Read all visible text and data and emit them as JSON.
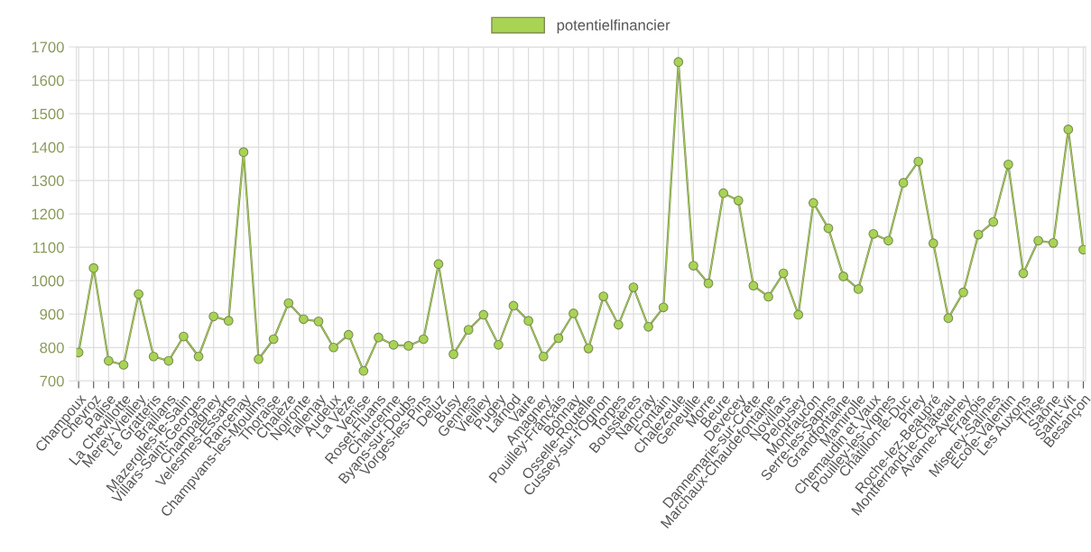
{
  "chart_data": {
    "type": "line",
    "categories": [
      "Champoux",
      "Chevroz",
      "Palise",
      "La Chevillotte",
      "Merey-Vieilley",
      "Le Gratteris",
      "Braillans",
      "Mazerolles-le-Salin",
      "Villars-Saint-Georges",
      "Champagney",
      "Velesmes-Essarts",
      "Rancenay",
      "Champvans-les-Moulins",
      "Thoraise",
      "Chalèze",
      "Noironte",
      "Tallenay",
      "Audeux",
      "La Vèze",
      "Venise",
      "Roset-Fluans",
      "Chaucenne",
      "Byans-sur-Doubs",
      "Vorges-les-Pins",
      "Deluz",
      "Busy",
      "Gennes",
      "Vieilley",
      "Pugey",
      "Larnod",
      "Vaire",
      "Amagney",
      "Pouilley-Français",
      "Bonnay",
      "Osselle-Routelle",
      "Cussey-sur-l'Ognon",
      "Torpes",
      "Boussières",
      "Nancray",
      "Fontain",
      "Chalezeule",
      "Geneuille",
      "Morre",
      "Beure",
      "Devecey",
      "Dannemarie-sur-Crète",
      "Marchaux-Chaudefontaine",
      "Novillars",
      "Pelousey",
      "Montfaucon",
      "Serre-les-Sapins",
      "Grandfontaine",
      "Mamirolle",
      "Chemaudin et Vaux",
      "Pouilley-les-Vignes",
      "Châtillon-le-Duc",
      "Pirey",
      "Roche-lez-Beaupré",
      "Montferrand-le-Château",
      "Avanne-Aveney",
      "Franois",
      "Miserey-Salines",
      "École-Valentin",
      "Les Auxons",
      "Thise",
      "Saône",
      "Saint-Vit",
      "Besançon"
    ],
    "series": [
      {
        "name": "potentielfinancier",
        "color": "#a8d454",
        "values": [
          785,
          1038,
          760,
          748,
          960,
          773,
          760,
          833,
          773,
          893,
          880,
          1385,
          765,
          825,
          933,
          885,
          878,
          800,
          838,
          730,
          830,
          808,
          805,
          825,
          1050,
          780,
          853,
          898,
          808,
          925,
          880,
          773,
          828,
          902,
          797,
          953,
          868,
          980,
          862,
          920,
          1655,
          1045,
          992,
          1262,
          1240,
          985,
          952,
          1022,
          898,
          1233,
          1157,
          1013,
          975,
          1140,
          1120,
          1293,
          1357,
          1112,
          888,
          965,
          1138,
          1176,
          1348,
          1022,
          1120,
          1113,
          1453,
          1093
        ]
      }
    ],
    "ylim": [
      700,
      1700
    ],
    "yticks": [
      700,
      800,
      900,
      1000,
      1100,
      1200,
      1300,
      1400,
      1500,
      1600,
      1700
    ],
    "grid": true,
    "legend": "top",
    "marker": "circle",
    "line_style": "solid"
  }
}
